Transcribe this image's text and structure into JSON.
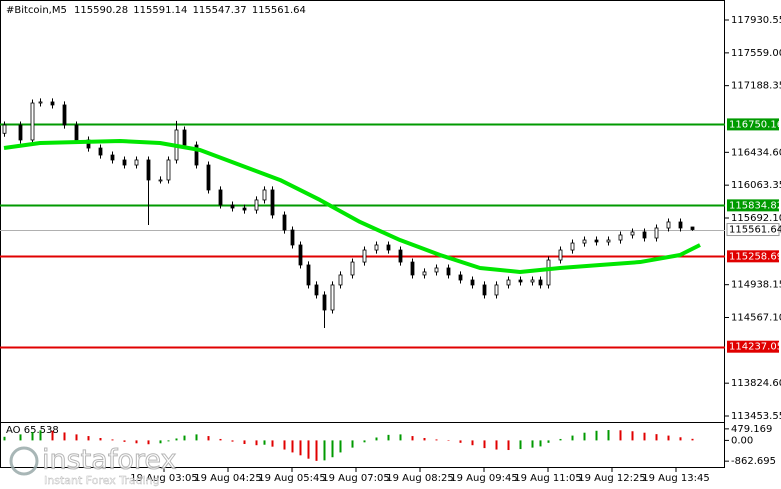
{
  "chart_data": {
    "type": "candlestick",
    "symbol": "#Bitcoin,M5",
    "x": [
      0,
      4,
      7,
      9,
      12,
      15,
      18,
      21,
      24,
      27,
      30,
      33,
      36,
      39,
      41,
      43,
      45,
      48,
      51,
      54,
      57,
      60,
      63,
      65,
      67,
      70,
      72,
      74,
      76,
      78,
      80,
      82,
      84,
      87,
      90,
      93,
      96,
      99,
      102,
      105,
      108,
      111,
      114,
      117,
      120,
      123,
      126,
      129,
      132,
      134,
      136,
      139,
      142,
      145,
      148,
      151,
      154,
      157,
      160,
      163,
      166,
      169,
      172
    ],
    "open": [
      116650,
      116743,
      116574,
      116992,
      117004,
      116970,
      116743,
      116574,
      116483,
      116404,
      116348,
      116291,
      116348,
      116122,
      116122,
      116348,
      116687,
      116517,
      116291,
      116009,
      115839,
      115805,
      115782,
      115896,
      116009,
      115726,
      115556,
      115387,
      115161,
      114935,
      114822,
      114652,
      114935,
      115048,
      115194,
      115330,
      115387,
      115330,
      115194,
      115048,
      115082,
      115127,
      115048,
      114991,
      114935,
      114822,
      114935,
      114991,
      114969,
      114991,
      114935,
      115217,
      115330,
      115409,
      115443,
      115421,
      115443,
      115500,
      115534,
      115466,
      115579,
      115647,
      115590.28
    ],
    "high": [
      116783,
      116783,
      117032,
      117044,
      117044,
      117010,
      116783,
      116614,
      116523,
      116444,
      116388,
      116388,
      116388,
      116162,
      116388,
      116790,
      116727,
      116557,
      116331,
      116049,
      115879,
      115845,
      115936,
      116049,
      116049,
      115766,
      115596,
      115427,
      115201,
      114975,
      114862,
      114975,
      115088,
      115234,
      115370,
      115427,
      115427,
      115370,
      115234,
      115122,
      115167,
      115167,
      115088,
      115031,
      114975,
      114975,
      115031,
      115031,
      115031,
      115031,
      115257,
      115370,
      115449,
      115483,
      115483,
      115483,
      115540,
      115574,
      115574,
      115619,
      115687,
      115687,
      115591.14
    ],
    "low": [
      116610,
      116534,
      116534,
      116952,
      116930,
      116703,
      116534,
      116443,
      116364,
      116308,
      116251,
      116251,
      115613,
      116082,
      116082,
      116308,
      116477,
      116251,
      115969,
      115799,
      115765,
      115742,
      115742,
      115856,
      115686,
      115516,
      115347,
      115121,
      114895,
      114782,
      114448,
      114612,
      114895,
      115008,
      115154,
      115290,
      115290,
      115154,
      115008,
      115008,
      115042,
      115008,
      114951,
      114895,
      114782,
      114782,
      114895,
      114929,
      114929,
      114895,
      114895,
      115177,
      115290,
      115369,
      115381,
      115381,
      115403,
      115460,
      115426,
      115426,
      115539,
      115539,
      115547.37
    ],
    "close": [
      116743,
      116574,
      116992,
      117004,
      116970,
      116743,
      116574,
      116483,
      116404,
      116348,
      116291,
      116348,
      116122,
      116122,
      116348,
      116687,
      116517,
      116291,
      116009,
      115839,
      115805,
      115782,
      115896,
      116009,
      115726,
      115556,
      115387,
      115161,
      114935,
      114822,
      114652,
      114935,
      115048,
      115194,
      115330,
      115387,
      115330,
      115194,
      115048,
      115082,
      115127,
      115048,
      114991,
      114935,
      114822,
      114935,
      114991,
      114969,
      114991,
      114935,
      115217,
      115330,
      115409,
      115443,
      115421,
      115443,
      115500,
      115534,
      115466,
      115579,
      115647,
      115579,
      115561.64
    ],
    "up_color": "#ffffff",
    "down_color": "#000000",
    "edge_color": "#000000",
    "xlim": [
      -1,
      180.25
    ],
    "xticks": [
      {
        "value": 40,
        "label": "19 Aug 03:05"
      },
      {
        "value": 56,
        "label": "19 Aug 04:25"
      },
      {
        "value": 72,
        "label": "19 Aug 05:45"
      },
      {
        "value": 88,
        "label": "19 Aug 07:05"
      },
      {
        "value": 104,
        "label": "19 Aug 08:25"
      },
      {
        "value": 120,
        "label": "19 Aug 09:45"
      },
      {
        "value": 136,
        "label": "19 Aug 11:05"
      },
      {
        "value": 152,
        "label": "19 Aug 12:25"
      },
      {
        "value": 168,
        "label": "19 Aug 13:45"
      }
    ],
    "ylim": [
      113385.7,
      118156.7
    ],
    "yticks": [
      117930.55,
      {
        "value": 117559,
        "label": "117559.00"
      },
      117188.35,
      {
        "value": 116434.6,
        "label": "116434.60"
      },
      116063.35,
      {
        "value": 115692.1,
        "label": "115692.10"
      },
      114938.15,
      {
        "value": 114567.1,
        "label": "114567.10"
      },
      {
        "value": 113824.6,
        "label": "113824.60"
      },
      113453.55
    ],
    "levels": [
      {
        "value": 116750.16,
        "color": "#009a00"
      },
      {
        "value": 115834.82,
        "color": "#009a00"
      },
      {
        "value": 115258.69,
        "color": "#e00000"
      },
      {
        "value": 114237.05,
        "color": "#e00000"
      }
    ],
    "ma": {
      "color": "#00e600",
      "x": [
        0,
        9,
        19,
        29,
        39,
        49,
        59,
        69,
        79,
        89,
        99,
        109,
        119,
        129,
        139,
        149,
        159,
        169,
        174
      ],
      "values": [
        116483,
        116540,
        116551,
        116563,
        116540,
        116461,
        116291,
        116122,
        115896,
        115647,
        115443,
        115274,
        115127,
        115082,
        115127,
        115161,
        115194,
        115274,
        115387
      ]
    },
    "ao": {
      "name": "AO",
      "up_color": "#009a00",
      "down_color": "#e00000",
      "ylim": [
        -1147,
        723
      ],
      "yticks": [
        479.169,
        {
          "value": 0,
          "label": "0.00"
        },
        -862.695
      ],
      "values": [
        150,
        250,
        350,
        420,
        400,
        330,
        250,
        180,
        100,
        40,
        -60,
        -120,
        -160,
        -120,
        -40,
        80,
        200,
        250,
        180,
        60,
        -50,
        -150,
        -200,
        -180,
        -260,
        -380,
        -500,
        -620,
        -760,
        -850,
        -830,
        -700,
        -500,
        -300,
        -80,
        120,
        230,
        250,
        180,
        100,
        40,
        -20,
        -100,
        -200,
        -320,
        -380,
        -400,
        -360,
        -300,
        -250,
        -100,
        60,
        200,
        320,
        400,
        430,
        420,
        380,
        320,
        260,
        200,
        130,
        65.538
      ]
    },
    "watermark": {
      "brand": "instaforex",
      "tagline": "Instant Forex Trading"
    }
  }
}
